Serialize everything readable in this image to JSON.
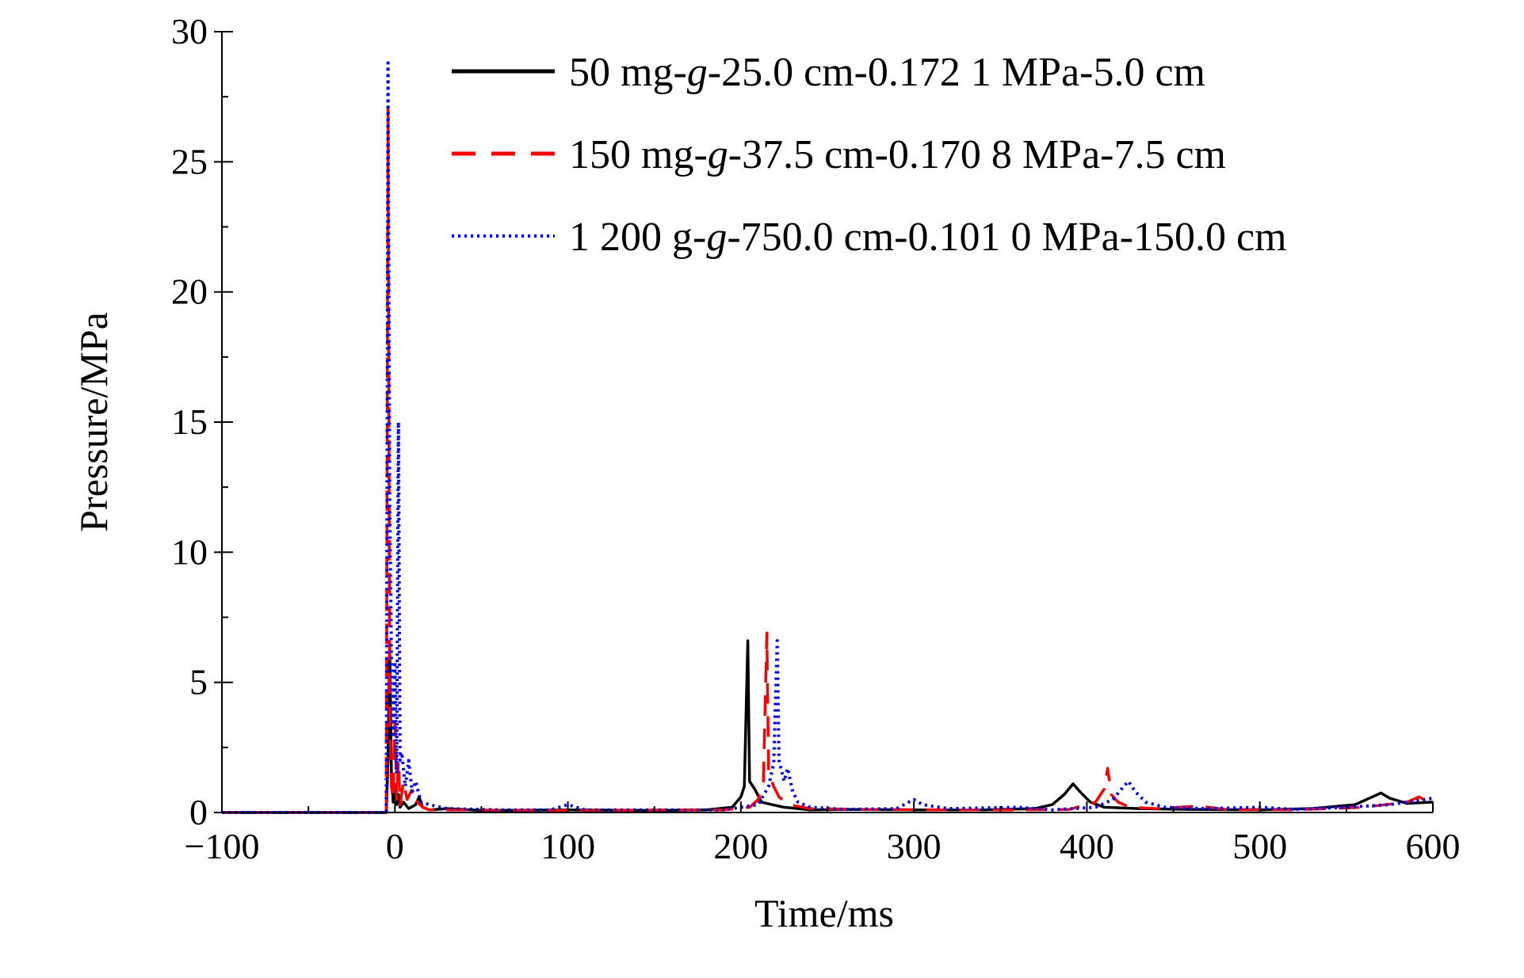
{
  "chart_data": {
    "type": "line",
    "title": "",
    "xlabel": "Time/ms",
    "ylabel": "Pressure/MPa",
    "xlim": [
      -100,
      600
    ],
    "ylim": [
      0,
      30
    ],
    "x_ticks": [
      -100,
      0,
      100,
      200,
      300,
      400,
      500,
      600
    ],
    "y_ticks": [
      0,
      5,
      10,
      15,
      20,
      25,
      30
    ],
    "grid": false,
    "legend_position": "top-right",
    "series": [
      {
        "name": "50 mg-g-25.0 cm-0.172 1 MPa-5.0 cm",
        "name_parts": [
          "50 mg-",
          "g",
          "-25.0 cm-0.172 1 MPa-5.0 cm"
        ],
        "color": "#000000",
        "line_style": "solid",
        "points": [
          [
            -100,
            0
          ],
          [
            -5,
            0
          ],
          [
            -4,
            2.0
          ],
          [
            -3,
            6.5
          ],
          [
            -2,
            1.5
          ],
          [
            -1,
            0.4
          ],
          [
            0,
            1.0
          ],
          [
            1,
            0.3
          ],
          [
            2,
            0.7
          ],
          [
            3,
            0.2
          ],
          [
            5,
            0.4
          ],
          [
            8,
            0.15
          ],
          [
            12,
            0.3
          ],
          [
            14,
            0.6
          ],
          [
            16,
            0.2
          ],
          [
            20,
            0.1
          ],
          [
            30,
            0.15
          ],
          [
            50,
            0.08
          ],
          [
            100,
            0.1
          ],
          [
            150,
            0.08
          ],
          [
            180,
            0.1
          ],
          [
            195,
            0.2
          ],
          [
            200,
            0.6
          ],
          [
            202,
            1.0
          ],
          [
            204,
            6.6
          ],
          [
            205,
            1.2
          ],
          [
            208,
            0.9
          ],
          [
            212,
            0.4
          ],
          [
            218,
            0.3
          ],
          [
            225,
            0.2
          ],
          [
            240,
            0.1
          ],
          [
            260,
            0.12
          ],
          [
            300,
            0.1
          ],
          [
            340,
            0.1
          ],
          [
            370,
            0.15
          ],
          [
            380,
            0.3
          ],
          [
            387,
            0.7
          ],
          [
            392,
            1.1
          ],
          [
            396,
            0.8
          ],
          [
            402,
            0.4
          ],
          [
            410,
            0.2
          ],
          [
            430,
            0.15
          ],
          [
            460,
            0.12
          ],
          [
            500,
            0.1
          ],
          [
            530,
            0.15
          ],
          [
            555,
            0.3
          ],
          [
            565,
            0.6
          ],
          [
            570,
            0.75
          ],
          [
            575,
            0.55
          ],
          [
            585,
            0.35
          ],
          [
            600,
            0.4
          ]
        ]
      },
      {
        "name": "150 mg-g-37.5 cm-0.170 8 MPa-7.5 cm",
        "name_parts": [
          "150 mg-",
          "g",
          "-37.5 cm-0.170 8 MPa-7.5 cm"
        ],
        "color": "#ff0000",
        "line_style": "dashed",
        "points": [
          [
            -100,
            0
          ],
          [
            -5,
            0
          ],
          [
            -4,
            27.0
          ],
          [
            -3,
            4.0
          ],
          [
            -2,
            1.0
          ],
          [
            -1,
            0.5
          ],
          [
            0,
            3.5
          ],
          [
            1,
            0.5
          ],
          [
            2,
            2.0
          ],
          [
            3,
            0.3
          ],
          [
            5,
            1.2
          ],
          [
            7,
            0.5
          ],
          [
            10,
            0.9
          ],
          [
            13,
            0.4
          ],
          [
            16,
            0.2
          ],
          [
            20,
            0.1
          ],
          [
            40,
            0.1
          ],
          [
            80,
            0.08
          ],
          [
            120,
            0.08
          ],
          [
            160,
            0.1
          ],
          [
            190,
            0.1
          ],
          [
            205,
            0.2
          ],
          [
            210,
            0.5
          ],
          [
            213,
            1.2
          ],
          [
            215,
            6.9
          ],
          [
            216,
            1.5
          ],
          [
            219,
            1.0
          ],
          [
            222,
            0.6
          ],
          [
            228,
            0.3
          ],
          [
            240,
            0.15
          ],
          [
            270,
            0.12
          ],
          [
            320,
            0.1
          ],
          [
            360,
            0.1
          ],
          [
            390,
            0.12
          ],
          [
            405,
            0.4
          ],
          [
            410,
            0.9
          ],
          [
            412,
            1.7
          ],
          [
            414,
            0.7
          ],
          [
            418,
            0.4
          ],
          [
            425,
            0.2
          ],
          [
            440,
            0.15
          ],
          [
            465,
            0.25
          ],
          [
            480,
            0.12
          ],
          [
            520,
            0.1
          ],
          [
            560,
            0.2
          ],
          [
            585,
            0.4
          ],
          [
            592,
            0.6
          ],
          [
            596,
            0.45
          ],
          [
            600,
            0.35
          ]
        ]
      },
      {
        "name": "1 200 g-g-750.0 cm-0.101 0 MPa-150.0 cm",
        "name_parts": [
          "1 200 g-",
          "g",
          "-750.0 cm-0.101 0 MPa-150.0 cm"
        ],
        "color": "#0000ff",
        "line_style": "dotted",
        "points": [
          [
            -100,
            0
          ],
          [
            -5,
            0
          ],
          [
            -4,
            28.8
          ],
          [
            -3,
            12.0
          ],
          [
            -2,
            6.0
          ],
          [
            -1,
            3.0
          ],
          [
            0,
            5.8
          ],
          [
            1,
            1.5
          ],
          [
            2,
            15.0
          ],
          [
            3,
            2.0
          ],
          [
            4,
            2.3
          ],
          [
            6,
            1.0
          ],
          [
            8,
            2.0
          ],
          [
            10,
            0.8
          ],
          [
            12,
            1.2
          ],
          [
            15,
            0.4
          ],
          [
            20,
            0.3
          ],
          [
            30,
            0.15
          ],
          [
            60,
            0.1
          ],
          [
            90,
            0.1
          ],
          [
            100,
            0.3
          ],
          [
            110,
            0.1
          ],
          [
            150,
            0.1
          ],
          [
            190,
            0.1
          ],
          [
            210,
            0.3
          ],
          [
            216,
            1.0
          ],
          [
            219,
            1.9
          ],
          [
            221,
            6.6
          ],
          [
            222,
            2.0
          ],
          [
            225,
            1.2
          ],
          [
            227,
            1.7
          ],
          [
            230,
            0.8
          ],
          [
            233,
            0.4
          ],
          [
            240,
            0.2
          ],
          [
            260,
            0.12
          ],
          [
            290,
            0.15
          ],
          [
            300,
            0.5
          ],
          [
            305,
            0.3
          ],
          [
            320,
            0.15
          ],
          [
            360,
            0.2
          ],
          [
            380,
            0.1
          ],
          [
            405,
            0.2
          ],
          [
            415,
            0.5
          ],
          [
            420,
            0.9
          ],
          [
            424,
            1.2
          ],
          [
            428,
            0.8
          ],
          [
            434,
            0.4
          ],
          [
            445,
            0.2
          ],
          [
            470,
            0.15
          ],
          [
            500,
            0.2
          ],
          [
            520,
            0.12
          ],
          [
            550,
            0.2
          ],
          [
            575,
            0.3
          ],
          [
            590,
            0.45
          ],
          [
            600,
            0.55
          ]
        ]
      }
    ]
  }
}
